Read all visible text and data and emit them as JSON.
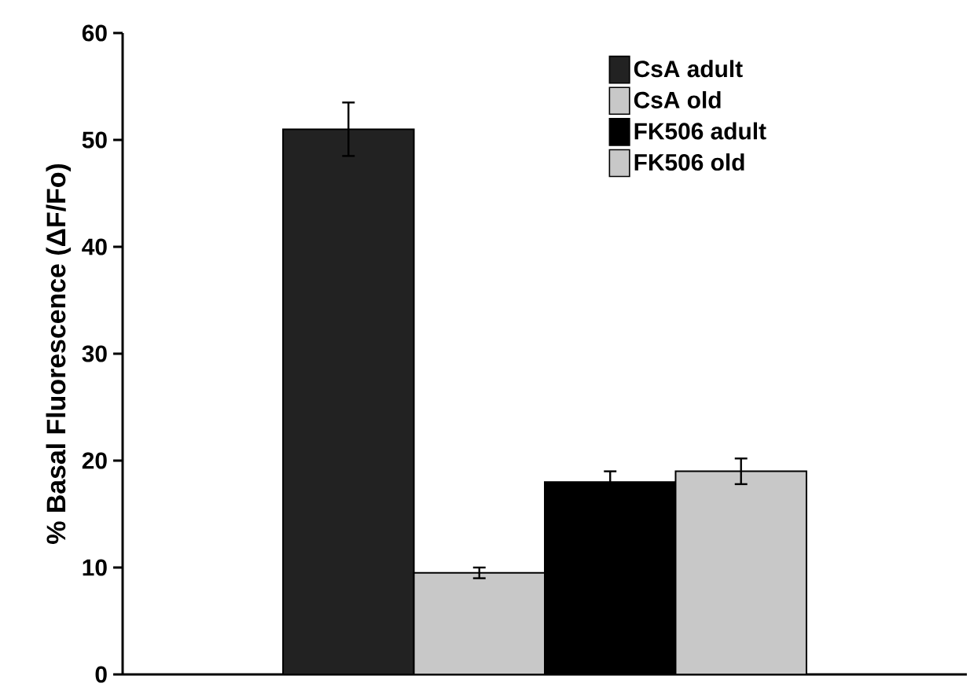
{
  "chart_data": {
    "type": "bar",
    "ylabel": "% Basal Fluorescence (ΔF/Fo)",
    "categories": [
      null
    ],
    "series": [
      {
        "name": "CsA adult",
        "color": "#222222",
        "values": [
          51
        ],
        "errors": [
          2.5
        ]
      },
      {
        "name": "CsA old",
        "color": "#c8c8c8",
        "values": [
          9.5
        ],
        "errors": [
          0.5
        ]
      },
      {
        "name": "FK506 adult",
        "color": "#000000",
        "values": [
          18
        ],
        "errors": [
          1
        ]
      },
      {
        "name": "FK506 old",
        "color": "#c8c8c8",
        "values": [
          19
        ],
        "errors": [
          1.2
        ]
      }
    ],
    "ylim": [
      0,
      60
    ],
    "yticks": [
      0,
      10,
      20,
      30,
      40,
      50,
      60
    ],
    "legend": "top right"
  }
}
